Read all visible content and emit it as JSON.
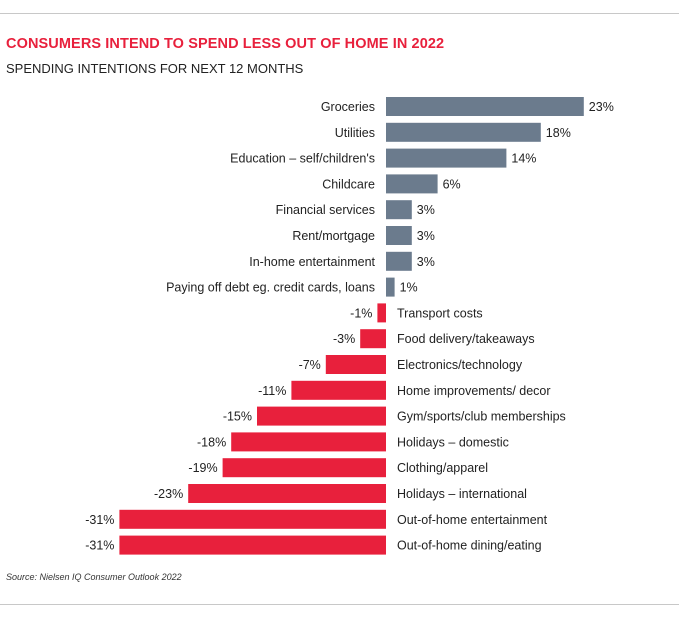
{
  "title": "CONSUMERS INTEND TO SPEND LESS OUT OF HOME IN 2022",
  "subtitle": "SPENDING INTENTIONS FOR NEXT 12 MONTHS",
  "source": "Source: Nielsen IQ Consumer Outlook 2022",
  "colors": {
    "positive": "#6b7b8d",
    "negative": "#e8203c",
    "text": "#222222"
  },
  "chart_data": {
    "type": "bar",
    "orientation": "horizontal",
    "value_unit": "%",
    "categories": [
      "Groceries",
      "Utilities",
      "Education – self/children's",
      "Childcare",
      "Financial services",
      "Rent/mortgage",
      "In-home entertainment",
      "Paying off debt eg. credit cards, loans",
      "Transport costs",
      "Food delivery/takeaways",
      "Electronics/technology",
      "Home improvements/ decor",
      "Gym/sports/club memberships",
      "Holidays – domestic",
      "Clothing/apparel",
      "Holidays – international",
      "Out-of-home entertainment",
      "Out-of-home dining/eating"
    ],
    "values": [
      23,
      18,
      14,
      6,
      3,
      3,
      3,
      1,
      -1,
      -3,
      -7,
      -11,
      -15,
      -18,
      -19,
      -23,
      -31,
      -31
    ],
    "labels": [
      "23%",
      "18%",
      "14%",
      "6%",
      "3%",
      "3%",
      "3%",
      "1%",
      "-1%",
      "-3%",
      "-7%",
      "-11%",
      "-15%",
      "-18%",
      "-19%",
      "-23%",
      "-31%",
      "-31%"
    ],
    "xlim": [
      -31,
      23
    ],
    "grid": false,
    "legend": "none"
  }
}
